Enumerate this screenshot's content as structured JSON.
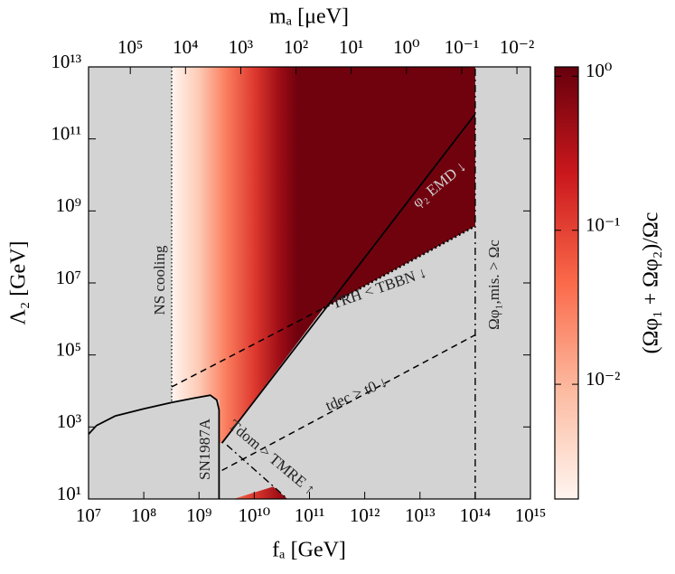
{
  "chart_data": {
    "type": "region",
    "x_label": "fₐ [GeV]",
    "y_label": "Λ₂ [GeV]",
    "top_label": "mₐ [μeV]",
    "colorbar_label": "(Ωφ₁ + Ωφ₂)/Ωc",
    "xscale": "log",
    "yscale": "log",
    "xlim": [
      10000000.0,
      1000000000000000.0
    ],
    "ylim": [
      10,
      10000000000000.0
    ],
    "top_xlim": [
      570000,
      0.0057
    ],
    "xticks": [
      {
        "value": 10000000.0,
        "label": "10⁷"
      },
      {
        "value": 100000000.0,
        "label": "10⁸"
      },
      {
        "value": 1000000000.0,
        "label": "10⁹"
      },
      {
        "value": 10000000000.0,
        "label": "10¹⁰"
      },
      {
        "value": 100000000000.0,
        "label": "10¹¹"
      },
      {
        "value": 1000000000000.0,
        "label": "10¹²"
      },
      {
        "value": 10000000000000.0,
        "label": "10¹³"
      },
      {
        "value": 100000000000000.0,
        "label": "10¹⁴"
      },
      {
        "value": 1000000000000000.0,
        "label": "10¹⁵"
      }
    ],
    "yticks": [
      {
        "value": 10,
        "label": "10¹"
      },
      {
        "value": 1000,
        "label": "10³"
      },
      {
        "value": 100000,
        "label": "10⁵"
      },
      {
        "value": 10000000.0,
        "label": "10⁷"
      },
      {
        "value": 1000000000.0,
        "label": "10⁹"
      },
      {
        "value": 100000000000.0,
        "label": "10¹¹"
      },
      {
        "value": 10000000000000.0,
        "label": "10¹³"
      }
    ],
    "top_ticks": [
      {
        "value": 100000,
        "label": "10⁵"
      },
      {
        "value": 10000,
        "label": "10⁴"
      },
      {
        "value": 1000,
        "label": "10³"
      },
      {
        "value": 100,
        "label": "10²"
      },
      {
        "value": 10,
        "label": "10¹"
      },
      {
        "value": 1,
        "label": "10⁰"
      },
      {
        "value": 0.1,
        "label": "10⁻¹"
      },
      {
        "value": 0.01,
        "label": "10⁻²"
      }
    ],
    "clim": [
      0.0018,
      1.15
    ],
    "cticks": [
      {
        "value": 0.01,
        "label": "10⁻²"
      },
      {
        "value": 0.1,
        "label": "10⁻¹"
      },
      {
        "value": 1,
        "label": "10⁰"
      }
    ],
    "colormap": [
      "#fff5f0",
      "#fcbba1",
      "#fb6a4a",
      "#cb181d",
      "#67000d"
    ],
    "excluded_color": "#d3d3d3",
    "abundance_x": [
      320000000.0,
      1000000000.0,
      3000000000.0,
      10000000000.0,
      30000000000.0,
      60000000000.0
    ],
    "abundance_values": [
      0.0018,
      0.006,
      0.03,
      0.12,
      0.5,
      1.0
    ],
    "abundance_regions": [
      {
        "x": [
          320000000.0,
          100000000000000.0,
          100000000000000.0,
          180000000000.0,
          2600000000.0,
          2300000000.0,
          2300000000.0,
          1600000000.0,
          800000000.0,
          320000000.0
        ],
        "y": [
          10000000000000.0,
          10000000000000.0,
          380000000.0,
          2000000.0,
          355,
          355,
          5600,
          7600,
          6300,
          4800
        ]
      },
      {
        "x": [
          4200000000.0,
          22000000000.0,
          40000000000.0
        ],
        "y": [
          10,
          22,
          10
        ]
      }
    ],
    "boundaries": [
      {
        "style": "dotted",
        "x": [
          320000000.0,
          320000000.0
        ],
        "y": [
          10000000000000.0,
          4800
        ]
      },
      {
        "style": "solid",
        "x": [
          10000000.0,
          14000000.0,
          30000000.0,
          100000000.0,
          320000000.0,
          800000000.0,
          1600000000.0,
          2100000000.0,
          2300000000.0,
          2300000000.0
        ],
        "y": [
          630,
          1100,
          2000,
          3200,
          4800,
          6300,
          7600,
          5600,
          3000,
          10
        ]
      },
      {
        "style": "solid",
        "x": [
          2600000000.0,
          100000000000000.0
        ],
        "y": [
          355,
          490000000000.0
        ]
      },
      {
        "style": "dashed",
        "x": [
          320000000.0,
          180000000000.0
        ],
        "y": [
          13000,
          2000000.0
        ]
      },
      {
        "style": "dotted-thick",
        "x": [
          180000000000.0,
          100000000000000.0
        ],
        "y": [
          2000000.0,
          380000000.0
        ]
      },
      {
        "style": "dashed",
        "x": [
          2600000000.0,
          100000000000000.0
        ],
        "y": [
          62,
          360000
        ]
      },
      {
        "style": "dashdot",
        "x": [
          3200000000.0,
          40000000000.0
        ],
        "y": [
          316,
          10
        ]
      },
      {
        "style": "dashdot",
        "x": [
          100000000000000.0,
          100000000000000.0
        ],
        "y": [
          10,
          10000000000000.0
        ]
      }
    ],
    "annotations": [
      "NS cooling",
      "SN1987A",
      "φ₂ EMD ↓",
      "TRH < TBBN ↓",
      "tdec > t0 ↓",
      "Tdom > TMRE ↑",
      "Ωφ₁,mis. > Ωc"
    ]
  }
}
